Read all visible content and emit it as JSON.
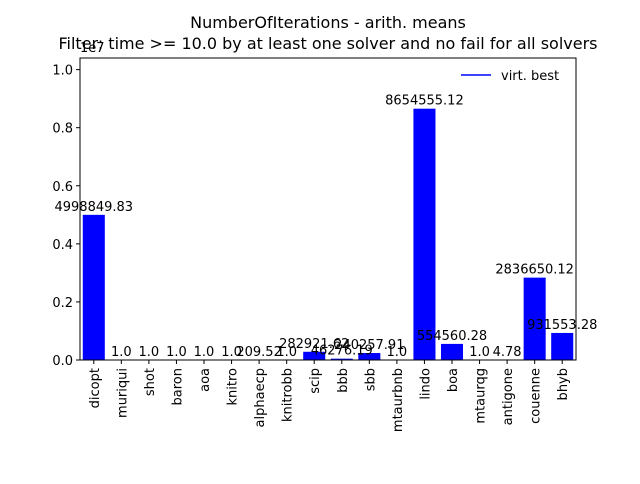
{
  "chart_data": {
    "type": "bar",
    "title": "NumberOfIterations - arith. means",
    "subtitle": "Filter: time >= 10.0 by at least one solver and no fail for all solvers",
    "xlabel": "",
    "ylabel": "",
    "y_scale_label": "1e7",
    "ylim": [
      0,
      10400000
    ],
    "y_ticks": [
      {
        "value": 0,
        "label": "0.0"
      },
      {
        "value": 2000000,
        "label": "0.2"
      },
      {
        "value": 4000000,
        "label": "0.4"
      },
      {
        "value": 6000000,
        "label": "0.6"
      },
      {
        "value": 8000000,
        "label": "0.8"
      },
      {
        "value": 10000000,
        "label": "1.0"
      }
    ],
    "categories": [
      "dicopt",
      "muriqui",
      "shot",
      "baron",
      "aoa",
      "knitro",
      "alphaecp",
      "knitrobb",
      "scip",
      "bbb",
      "sbb",
      "mtaurbnb",
      "lindo",
      "boa",
      "mtaurqg",
      "antigone",
      "couenne",
      "bhyb"
    ],
    "values": [
      4998849.83,
      1.0,
      1.0,
      1.0,
      1.0,
      1.0,
      209.52,
      1.0,
      282921.62,
      46276.19,
      240257.91,
      1.0,
      8654555.12,
      554560.28,
      1.0,
      4.78,
      2836650.12,
      931553.28
    ],
    "value_labels": [
      "4998849.83",
      "1.0",
      "1.0",
      "1.0",
      "1.0",
      "1.0",
      "209.52",
      "1.0",
      "282921.62",
      "46276.19",
      "240257.91",
      "1.0",
      "8654555.12",
      "554560.28",
      "1.0",
      "4.78",
      "2836650.12",
      "931553.28"
    ],
    "bar_color": "#0000ff",
    "legend": {
      "placement": "top-right",
      "entries": [
        {
          "label": "virt. best",
          "color": "#0000ff",
          "marker": "line"
        }
      ]
    },
    "grid": false
  }
}
